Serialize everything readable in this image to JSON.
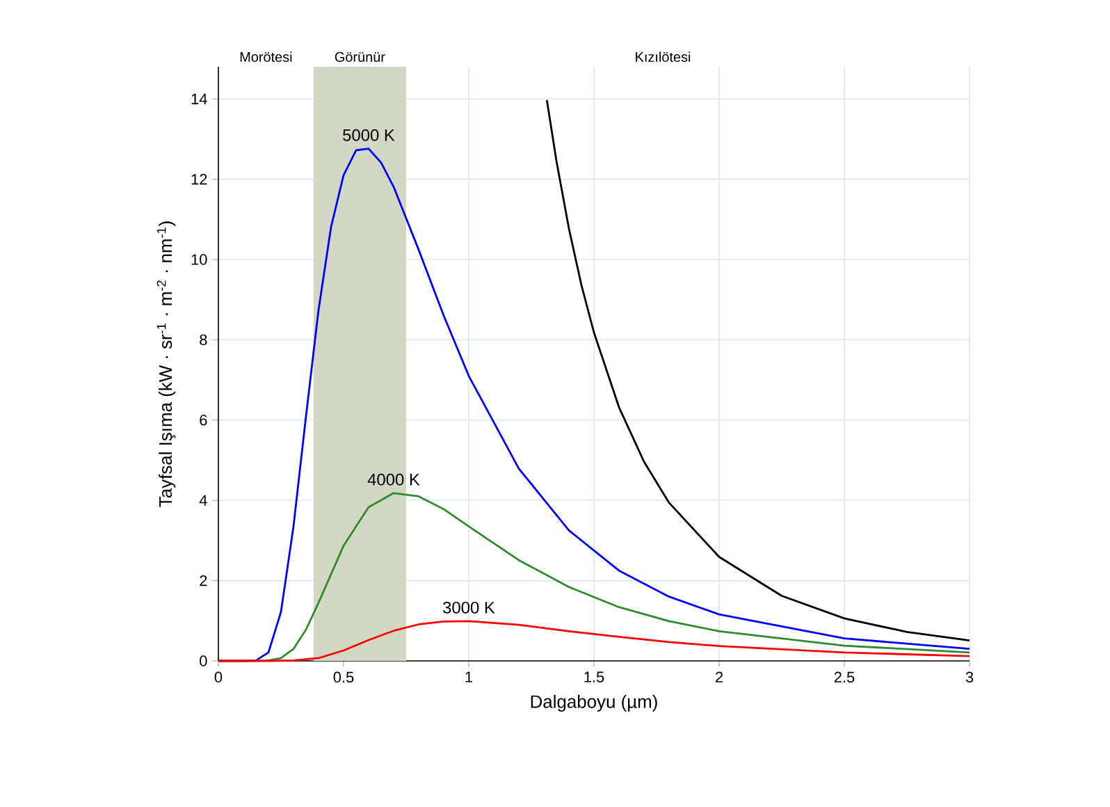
{
  "chart_data": {
    "type": "line",
    "xlabel": "Dalgaboyu (µm)",
    "ylabel": "Tayfsal Işıma (kW · sr$^{-1}$ · m$^{-2}$ · nm$^{-1}$)",
    "xlim": [
      0,
      3
    ],
    "ylim": [
      0,
      14.8
    ],
    "xticks": [
      0,
      0.5,
      1,
      1.5,
      2,
      2.5,
      3
    ],
    "yticks": [
      0,
      2,
      4,
      6,
      8,
      10,
      12,
      14
    ],
    "grid": true,
    "marker": "none",
    "line_style": "solid",
    "annotations": [
      "Morötesi",
      "Kızılötesi"
    ],
    "bands": [
      {
        "axis": "x",
        "from": 0.38,
        "to": 0.75,
        "label": "Görünür",
        "color": "#d2d8c4"
      }
    ],
    "series": [
      {
        "name": "5000 K",
        "color": "#0000ff",
        "x": [
          0,
          0.1,
          0.15,
          0.2,
          0.25,
          0.3,
          0.35,
          0.4,
          0.45,
          0.5,
          0.55,
          0.6,
          0.65,
          0.7,
          0.8,
          0.9,
          1.0,
          1.2,
          1.4,
          1.6,
          1.8,
          2.0,
          2.5,
          3.0
        ],
        "values": [
          0,
          0,
          0.01,
          0.21,
          1.22,
          3.35,
          6.1,
          8.74,
          10.81,
          12.1,
          12.72,
          12.76,
          12.41,
          11.81,
          10.24,
          8.6,
          7.1,
          4.79,
          3.25,
          2.25,
          1.6,
          1.16,
          0.56,
          0.3
        ]
      },
      {
        "name": "4000 K",
        "color": "#2e8b2e",
        "x": [
          0,
          0.15,
          0.2,
          0.25,
          0.3,
          0.35,
          0.4,
          0.5,
          0.6,
          0.7,
          0.8,
          0.9,
          1.0,
          1.2,
          1.4,
          1.6,
          1.8,
          2.0,
          2.5,
          3.0
        ],
        "values": [
          0,
          0,
          0.01,
          0.07,
          0.3,
          0.78,
          1.45,
          2.87,
          3.83,
          4.18,
          4.1,
          3.78,
          3.35,
          2.51,
          1.84,
          1.34,
          0.99,
          0.74,
          0.38,
          0.21
        ]
      },
      {
        "name": "3000 K",
        "color": "#ff0000",
        "x": [
          0,
          0.2,
          0.3,
          0.4,
          0.5,
          0.6,
          0.7,
          0.8,
          0.9,
          1.0,
          1.2,
          1.4,
          1.6,
          1.8,
          2.0,
          2.5,
          3.0
        ],
        "values": [
          0,
          0,
          0.01,
          0.07,
          0.26,
          0.52,
          0.75,
          0.91,
          0.98,
          0.99,
          0.9,
          0.74,
          0.6,
          0.47,
          0.37,
          0.21,
          0.12
        ]
      },
      {
        "color": "#000000",
        "x": [
          1.312,
          1.35,
          1.4,
          1.45,
          1.5,
          1.6,
          1.7,
          1.8,
          2.0,
          2.25,
          2.5,
          2.75,
          3.0
        ],
        "values": [
          13.97,
          12.46,
          10.77,
          9.36,
          8.18,
          6.32,
          4.96,
          3.94,
          2.59,
          1.62,
          1.06,
          0.72,
          0.51
        ]
      }
    ]
  }
}
